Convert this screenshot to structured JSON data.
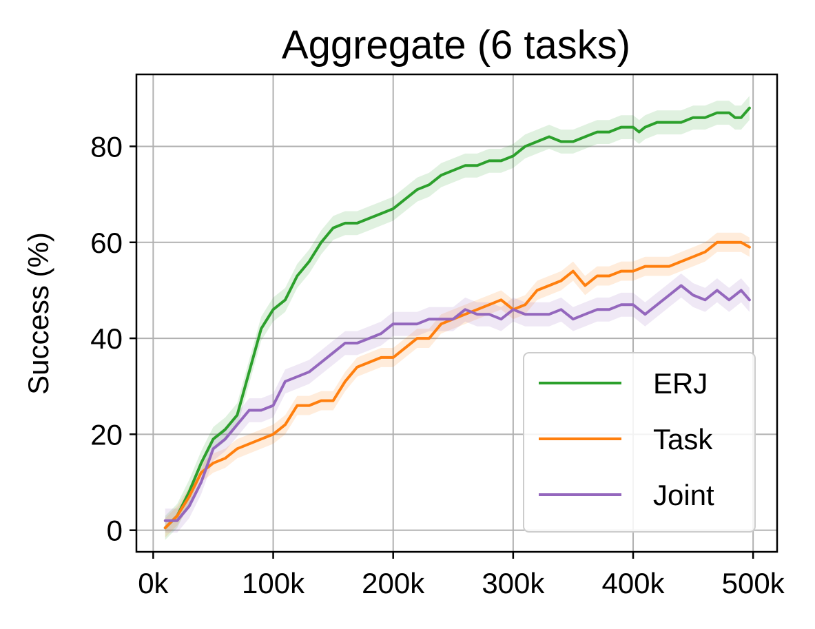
{
  "chart_data": {
    "type": "line",
    "title": "Aggregate (6 tasks)",
    "xlabel": "",
    "ylabel": "Success (%)",
    "xlim": [
      -14000,
      520000
    ],
    "ylim": [
      -4.5,
      95
    ],
    "xticks": [
      0,
      100000,
      200000,
      300000,
      400000,
      500000
    ],
    "xtick_labels": [
      "0k",
      "100k",
      "200k",
      "300k",
      "400k",
      "500k"
    ],
    "yticks": [
      0,
      20,
      40,
      60,
      80
    ],
    "ytick_labels": [
      "0",
      "20",
      "40",
      "60",
      "80"
    ],
    "grid": true,
    "legend_position": "lower right",
    "series": [
      {
        "name": "ERJ",
        "color": "#2ca02c",
        "band": 2.5,
        "x": [
          10000,
          20000,
          30000,
          40000,
          50000,
          55000,
          60000,
          70000,
          80000,
          90000,
          100000,
          110000,
          120000,
          130000,
          140000,
          150000,
          160000,
          170000,
          180000,
          190000,
          200000,
          210000,
          220000,
          230000,
          240000,
          250000,
          260000,
          270000,
          280000,
          290000,
          300000,
          310000,
          320000,
          330000,
          340000,
          350000,
          360000,
          370000,
          380000,
          390000,
          400000,
          405000,
          410000,
          420000,
          430000,
          440000,
          450000,
          460000,
          470000,
          480000,
          485000,
          490000,
          497000
        ],
        "y": [
          0.5,
          3,
          8,
          14,
          19,
          20,
          21,
          24,
          33,
          42,
          46,
          48,
          53,
          56,
          60,
          63,
          64,
          64,
          65,
          66,
          67,
          69,
          71,
          72,
          74,
          75,
          76,
          76,
          77,
          77,
          78,
          80,
          81,
          82,
          81,
          81,
          82,
          83,
          83,
          84,
          84,
          83,
          84,
          85,
          85,
          85,
          86,
          86,
          87,
          87,
          86,
          86,
          88
        ]
      },
      {
        "name": "Task",
        "color": "#ff7f0e",
        "band": 2.0,
        "x": [
          10000,
          20000,
          30000,
          40000,
          50000,
          60000,
          70000,
          80000,
          90000,
          100000,
          110000,
          120000,
          130000,
          140000,
          150000,
          160000,
          170000,
          180000,
          190000,
          200000,
          210000,
          220000,
          230000,
          240000,
          250000,
          260000,
          270000,
          280000,
          290000,
          300000,
          310000,
          320000,
          330000,
          340000,
          350000,
          360000,
          370000,
          380000,
          390000,
          400000,
          410000,
          420000,
          430000,
          440000,
          450000,
          460000,
          470000,
          480000,
          490000,
          497000
        ],
        "y": [
          0.5,
          3,
          7,
          12,
          14,
          15,
          17,
          18,
          19,
          20,
          22,
          26,
          26,
          27,
          27,
          31,
          34,
          35,
          36,
          36,
          38,
          40,
          40,
          43,
          44,
          45,
          46,
          47,
          48,
          46,
          47,
          50,
          51,
          52,
          54,
          51,
          53,
          53,
          54,
          54,
          55,
          55,
          55,
          56,
          57,
          58,
          60,
          60,
          60,
          59
        ]
      },
      {
        "name": "Joint",
        "color": "#9467bd",
        "band": 2.5,
        "x": [
          10000,
          20000,
          30000,
          40000,
          50000,
          60000,
          70000,
          80000,
          90000,
          100000,
          110000,
          120000,
          130000,
          140000,
          150000,
          160000,
          170000,
          180000,
          190000,
          200000,
          210000,
          220000,
          230000,
          240000,
          250000,
          260000,
          270000,
          280000,
          290000,
          300000,
          310000,
          320000,
          330000,
          340000,
          350000,
          360000,
          370000,
          380000,
          390000,
          400000,
          410000,
          420000,
          430000,
          440000,
          450000,
          460000,
          470000,
          480000,
          490000,
          497000
        ],
        "y": [
          2,
          2,
          5,
          10,
          17,
          19,
          22,
          25,
          25,
          26,
          31,
          32,
          33,
          35,
          37,
          39,
          39,
          40,
          41,
          43,
          43,
          43,
          44,
          44,
          44,
          46,
          45,
          45,
          44,
          46,
          45,
          45,
          45,
          46,
          44,
          45,
          46,
          46,
          47,
          47,
          45,
          47,
          49,
          51,
          49,
          48,
          50,
          48,
          50,
          48
        ]
      }
    ]
  }
}
